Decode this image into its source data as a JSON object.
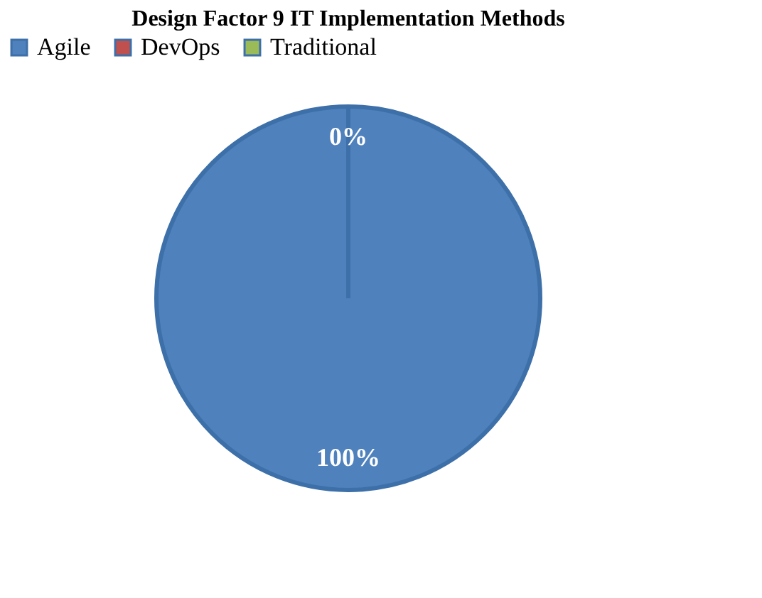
{
  "chart_data": {
    "type": "pie",
    "title": "Design Factor 9 IT Implementation Methods",
    "categories": [
      "Agile",
      "DevOps",
      "Traditional"
    ],
    "values": [
      100,
      0,
      0
    ],
    "colors": [
      "#4f81bd",
      "#c0504d",
      "#9bbb59"
    ],
    "value_labels": [
      "100%",
      "0%",
      null
    ],
    "legend": "top"
  }
}
